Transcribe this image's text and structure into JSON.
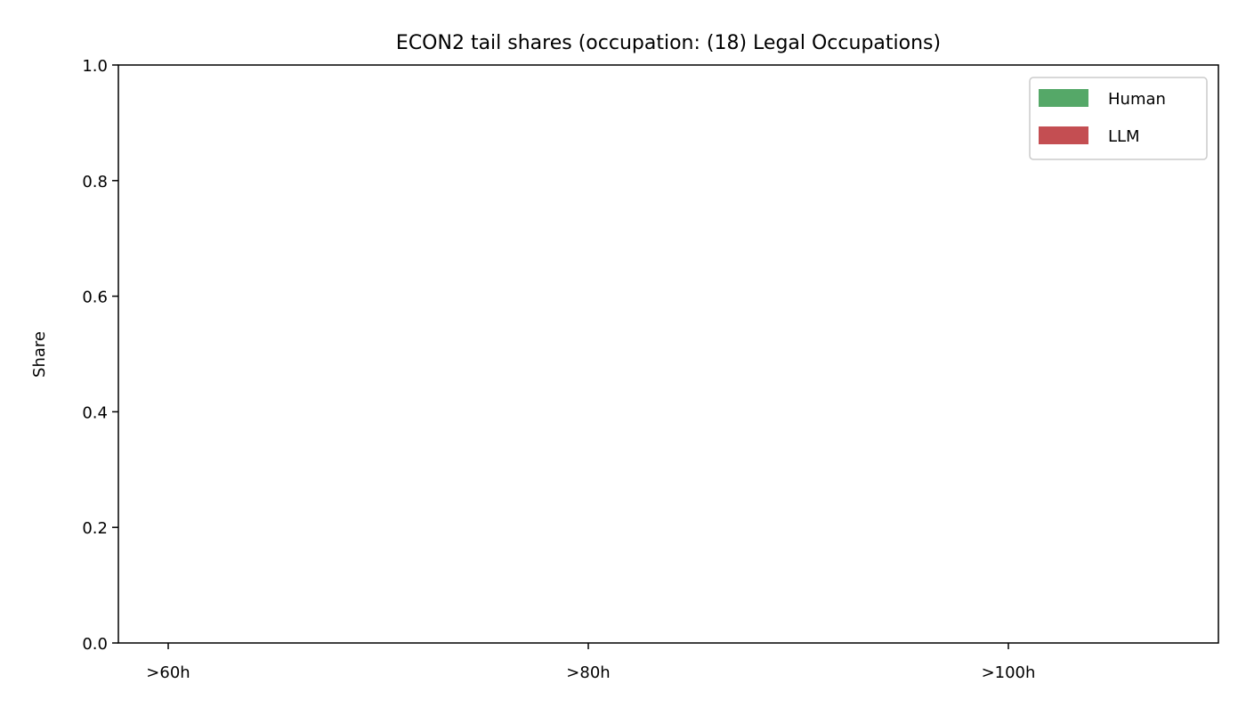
{
  "chart_data": {
    "type": "bar",
    "title": "ECON2 tail shares (occupation: (18) Legal Occupations)",
    "xlabel": "",
    "ylabel": "Share",
    "categories": [
      ">60h",
      ">80h",
      ">100h"
    ],
    "ylim": [
      0,
      1
    ],
    "yticks": [
      "0.0",
      "0.2",
      "0.4",
      "0.6",
      "0.8",
      "1.0"
    ],
    "grid": false,
    "legend_position": "top-right",
    "series": [
      {
        "name": "Human",
        "color": "#55a868",
        "values": [
          0,
          0,
          0
        ]
      },
      {
        "name": "LLM",
        "color": "#c44e52",
        "values": [
          0,
          0,
          0
        ]
      }
    ]
  }
}
